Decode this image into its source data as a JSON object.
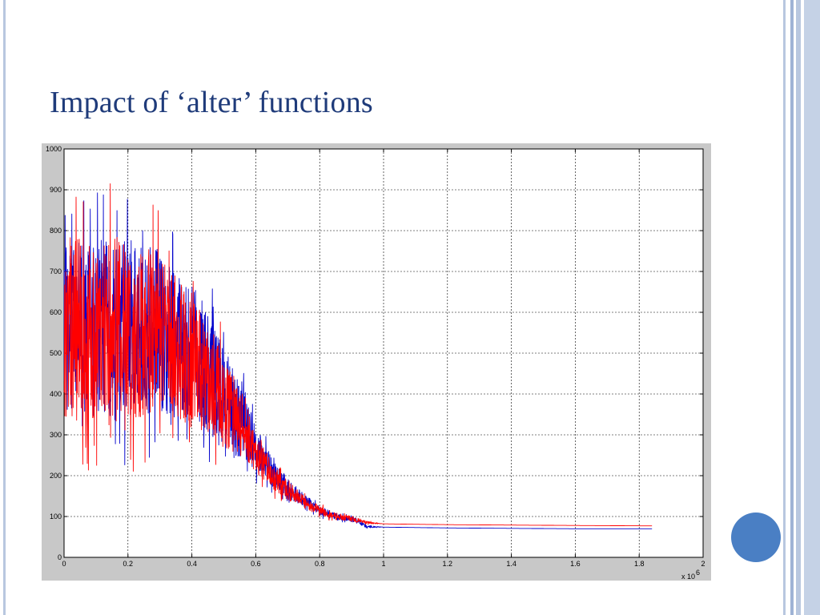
{
  "slide": {
    "title": "Impact of ‘alter’ functions",
    "accent_color": "#1f3b7a",
    "frame_color": "#b8c7df",
    "circle_color": "#4a7fc4"
  },
  "chart_data": {
    "type": "line",
    "title": "",
    "xlabel": "",
    "ylabel": "",
    "x_exponent_label": "x 10",
    "x_exponent": "6",
    "xlim": [
      0,
      2
    ],
    "ylim": [
      0,
      1000
    ],
    "grid": true,
    "x_ticks": [
      "0",
      "0.2",
      "0.4",
      "0.6",
      "0.8",
      "1",
      "1.2",
      "1.4",
      "1.6",
      "1.8",
      "2"
    ],
    "y_ticks": [
      "0",
      "100",
      "200",
      "300",
      "400",
      "500",
      "600",
      "700",
      "800",
      "900",
      "1000"
    ],
    "series": [
      {
        "color": "#0000cc",
        "x": [
          0,
          0.1,
          0.2,
          0.3,
          0.4,
          0.45,
          0.5,
          0.55,
          0.6,
          0.65,
          0.7,
          0.75,
          0.8,
          0.85,
          0.9,
          0.95,
          1.0,
          1.2,
          1.4,
          1.6,
          1.84
        ],
        "y": [
          560,
          560,
          555,
          550,
          500,
          460,
          390,
          340,
          270,
          210,
          170,
          140,
          115,
          100,
          95,
          75,
          74,
          72,
          71,
          70,
          70
        ],
        "noise": [
          260,
          270,
          280,
          250,
          210,
          190,
          160,
          120,
          70,
          45,
          30,
          20,
          14,
          10,
          8,
          4,
          0,
          0,
          0,
          0,
          0
        ]
      },
      {
        "color": "#ff0000",
        "x": [
          0,
          0.1,
          0.2,
          0.3,
          0.4,
          0.45,
          0.5,
          0.55,
          0.6,
          0.65,
          0.7,
          0.75,
          0.8,
          0.85,
          0.9,
          0.95,
          1.0,
          1.2,
          1.4,
          1.6,
          1.84
        ],
        "y": [
          560,
          570,
          550,
          545,
          480,
          440,
          380,
          330,
          260,
          200,
          160,
          135,
          115,
          100,
          95,
          85,
          82,
          80,
          79,
          78,
          77
        ],
        "noise": [
          280,
          290,
          270,
          240,
          200,
          170,
          140,
          110,
          60,
          40,
          25,
          18,
          14,
          10,
          8,
          4,
          0,
          0,
          0,
          0,
          0
        ]
      }
    ]
  }
}
